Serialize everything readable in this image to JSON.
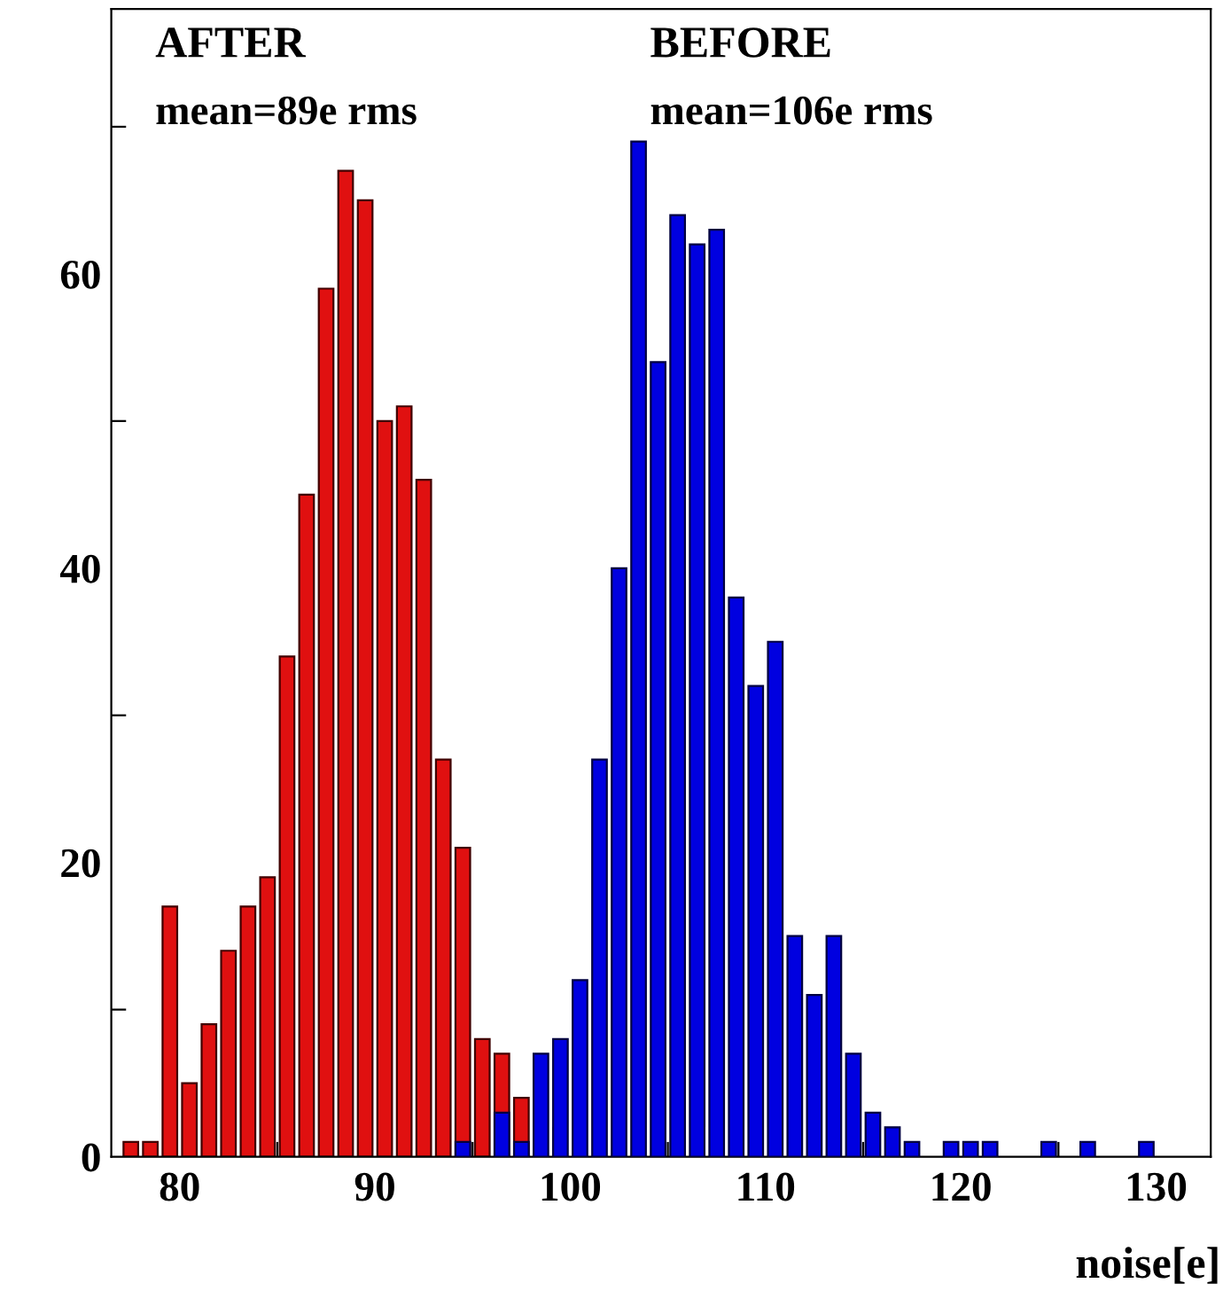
{
  "chart_data": {
    "type": "histogram",
    "bins": [
      77,
      78,
      79,
      80,
      81,
      82,
      83,
      84,
      85,
      86,
      87,
      88,
      89,
      90,
      91,
      92,
      93,
      94,
      95,
      96,
      97,
      98,
      99,
      100,
      101,
      102,
      103,
      104,
      105,
      106,
      107,
      108,
      109,
      110,
      111,
      112,
      113,
      114,
      115,
      116,
      117,
      118,
      119,
      120,
      121,
      122,
      123,
      124,
      125,
      126,
      127,
      128,
      129,
      130
    ],
    "series": [
      {
        "name": "AFTER",
        "color": "#e01010",
        "values": [
          1,
          1,
          17,
          5,
          9,
          14,
          17,
          19,
          34,
          45,
          59,
          67,
          65,
          50,
          51,
          46,
          27,
          21,
          8,
          7,
          4,
          null,
          null,
          null,
          null,
          null,
          null,
          null,
          null,
          null,
          null,
          null,
          null,
          null,
          null,
          null,
          null,
          null,
          null,
          null,
          null,
          null,
          null,
          null,
          null,
          null,
          null,
          null,
          null,
          null,
          null,
          null,
          null
        ]
      },
      {
        "name": "BEFORE",
        "color": "#0000e0",
        "values": [
          null,
          null,
          null,
          null,
          null,
          null,
          null,
          null,
          null,
          null,
          null,
          null,
          null,
          null,
          null,
          null,
          null,
          1,
          null,
          3,
          1,
          7,
          8,
          12,
          27,
          40,
          69,
          54,
          64,
          62,
          63,
          38,
          32,
          35,
          15,
          11,
          15,
          7,
          3,
          2,
          1,
          null,
          1,
          1,
          1,
          null,
          null,
          1,
          null,
          1,
          null,
          null,
          1
        ]
      }
    ],
    "annotations": [
      "mean=89e rms",
      "mean=106e rms"
    ],
    "xlabel": "noise[e]",
    "xlim": [
      76.5,
      132.8
    ],
    "xticks": [
      80,
      {
        "value": 85,
        "label": null
      },
      90,
      {
        "value": 95,
        "label": null
      },
      100,
      {
        "value": 105,
        "label": null
      },
      110,
      {
        "value": 115,
        "label": null
      },
      120,
      {
        "value": 125,
        "label": null
      },
      130
    ],
    "ylim": [
      0,
      78
    ],
    "yticks": [
      0,
      {
        "value": 10,
        "label": null
      },
      20,
      {
        "value": 30,
        "label": null
      },
      40,
      {
        "value": 50,
        "label": null
      },
      60,
      {
        "value": 70,
        "label": null
      }
    ],
    "grid": false,
    "legend": false
  }
}
